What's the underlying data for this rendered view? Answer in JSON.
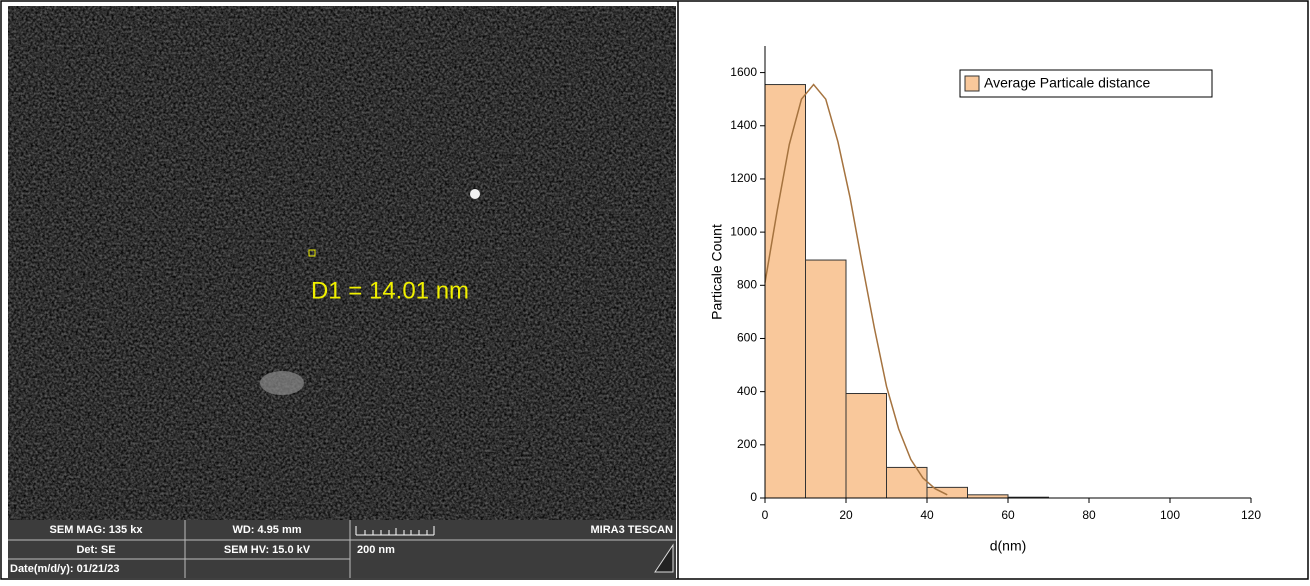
{
  "sem_image": {
    "annotation": "D1 = 14.01 nm",
    "info": {
      "mag": "SEM MAG: 135 kx",
      "wd": "WD: 4.95 mm",
      "brand": "MIRA3 TESCAN",
      "det": "Det: SE",
      "hv": "SEM HV: 15.0 kV",
      "scale": "200 nm",
      "date": "Date(m/d/y): 01/21/23"
    }
  },
  "chart_data": {
    "type": "histogram",
    "bins": [
      0,
      10,
      20,
      30,
      40,
      50,
      60,
      70
    ],
    "values": [
      1555,
      895,
      393,
      115,
      40,
      12,
      3
    ],
    "color": "#f9c89b",
    "edge_color": "#333333",
    "legend": "Average Particale distance",
    "legend_position": "upper right",
    "fit_curve": {
      "x": [
        0,
        3,
        6,
        9,
        12,
        15,
        18,
        21,
        24,
        27,
        30,
        33,
        36,
        39,
        42,
        45
      ],
      "values": [
        810,
        1080,
        1330,
        1500,
        1555,
        1500,
        1340,
        1130,
        880,
        640,
        420,
        260,
        145,
        75,
        35,
        12
      ],
      "color": "#a5733f"
    },
    "xlabel": "d(nm)",
    "ylabel": "Particale Count",
    "xlim": [
      0,
      120
    ],
    "xticks": [
      0,
      20,
      40,
      60,
      80,
      100,
      120
    ],
    "ylim": [
      0,
      1700
    ],
    "yticks": [
      0,
      200,
      400,
      600,
      800,
      1000,
      1200,
      1400,
      1600
    ],
    "grid": false
  }
}
